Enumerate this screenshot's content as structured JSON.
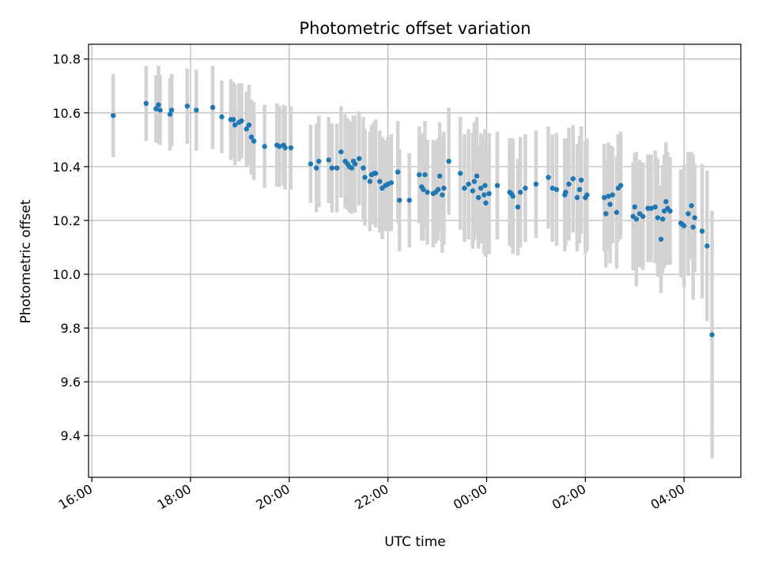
{
  "chart_data": {
    "type": "scatter",
    "title": "Photometric offset variation",
    "xlabel": "UTC time",
    "ylabel": "Photometric offset",
    "grid": true,
    "legend": "none",
    "x_ticks": [
      "16:00",
      "18:00",
      "20:00",
      "22:00",
      "00:00",
      "02:00",
      "04:00"
    ],
    "y_ticks": [
      "9.4",
      "9.6",
      "9.8",
      "10.0",
      "10.2",
      "10.4",
      "10.6",
      "10.8"
    ],
    "xlim": [
      "15:56",
      "05:09"
    ],
    "ylim": [
      9.245,
      10.855
    ],
    "colors": {
      "marker": "#1f77b4",
      "errorbar": "#d3d3d3",
      "grid": "#b0b0b0"
    },
    "series": [
      {
        "x": [
          "16:26",
          "17:06",
          "17:18",
          "17:21",
          "17:23",
          "17:35",
          "17:37",
          "17:56",
          "18:07",
          "18:27",
          "18:38",
          "18:49",
          "18:52",
          "18:54",
          "18:59",
          "19:02",
          "19:08",
          "19:11",
          "19:14",
          "19:17",
          "19:30",
          "19:45",
          "19:48",
          "19:53",
          "19:55",
          "20:02",
          "20:26",
          "20:33",
          "20:36",
          "20:48",
          "20:52",
          "20:58",
          "21:03",
          "21:08",
          "21:11",
          "21:13",
          "21:16",
          "21:18",
          "21:20",
          "21:25",
          "21:30",
          "21:32",
          "21:38",
          "21:40",
          "21:43",
          "21:45",
          "21:50",
          "21:53",
          "21:57",
          "22:00",
          "22:04",
          "22:12",
          "22:14",
          "22:26",
          "22:38",
          "22:41",
          "22:43",
          "22:45",
          "22:48",
          "22:55",
          "22:58",
          "23:01",
          "23:03",
          "23:06",
          "23:08",
          "23:14",
          "23:28",
          "23:33",
          "23:38",
          "23:43",
          "23:45",
          "23:48",
          "23:50",
          "23:53",
          "23:58",
          "23:59",
          "23:57",
          "00:03",
          "00:13",
          "00:28",
          "00:30",
          "00:32",
          "00:38",
          "00:41",
          "00:47",
          "01:00",
          "01:15",
          "01:20",
          "01:25",
          "01:35",
          "01:36",
          "01:40",
          "01:45",
          "01:50",
          "01:53",
          "01:55",
          "02:00",
          "02:02",
          "02:23",
          "02:25",
          "02:28",
          "02:30",
          "02:33",
          "02:38",
          "02:40",
          "02:43",
          "02:58",
          "03:00",
          "03:02",
          "03:06",
          "03:10",
          "03:16",
          "03:20",
          "03:25",
          "03:28",
          "03:32",
          "03:34",
          "03:36",
          "03:38",
          "03:40",
          "03:43",
          "03:56",
          "03:58",
          "04:00",
          "04:05",
          "04:09",
          "04:11",
          "04:13",
          "04:22",
          "04:28",
          "04:34"
        ],
        "y": [
          10.59,
          10.635,
          10.615,
          10.63,
          10.61,
          10.595,
          10.61,
          10.625,
          10.61,
          10.62,
          10.585,
          10.575,
          10.575,
          10.555,
          10.565,
          10.57,
          10.54,
          10.555,
          10.51,
          10.495,
          10.475,
          10.48,
          10.475,
          10.48,
          10.47,
          10.47,
          10.41,
          10.395,
          10.42,
          10.425,
          10.395,
          10.395,
          10.455,
          10.42,
          10.41,
          10.4,
          10.395,
          10.42,
          10.41,
          10.43,
          10.395,
          10.36,
          10.345,
          10.37,
          10.375,
          10.375,
          10.345,
          10.32,
          10.33,
          10.335,
          10.34,
          10.38,
          10.275,
          10.275,
          10.37,
          10.325,
          10.315,
          10.37,
          10.305,
          10.3,
          10.305,
          10.315,
          10.365,
          10.295,
          10.32,
          10.42,
          10.375,
          10.32,
          10.335,
          10.31,
          10.345,
          10.365,
          10.285,
          10.32,
          10.33,
          10.265,
          10.295,
          10.3,
          10.33,
          10.305,
          10.3,
          10.29,
          10.25,
          10.305,
          10.32,
          10.335,
          10.36,
          10.32,
          10.315,
          10.295,
          10.305,
          10.335,
          10.355,
          10.285,
          10.315,
          10.35,
          10.285,
          10.295,
          10.285,
          10.225,
          10.29,
          10.26,
          10.295,
          10.23,
          10.32,
          10.33,
          10.215,
          10.25,
          10.205,
          10.225,
          10.215,
          10.245,
          10.245,
          10.25,
          10.21,
          10.13,
          10.205,
          10.235,
          10.27,
          10.245,
          10.235,
          10.19,
          10.185,
          10.18,
          10.225,
          10.255,
          10.175,
          10.21,
          10.16,
          10.105,
          9.775
        ],
        "err": [
          0.155,
          0.14,
          0.125,
          0.145,
          0.13,
          0.135,
          0.135,
          0.14,
          0.15,
          0.155,
          0.135,
          0.15,
          0.14,
          0.15,
          0.145,
          0.14,
          0.14,
          0.15,
          0.14,
          0.145,
          0.155,
          0.155,
          0.15,
          0.15,
          0.155,
          0.155,
          0.145,
          0.165,
          0.17,
          0.16,
          0.165,
          0.165,
          0.17,
          0.175,
          0.17,
          0.17,
          0.17,
          0.17,
          0.18,
          0.175,
          0.19,
          0.18,
          0.185,
          0.185,
          0.19,
          0.2,
          0.19,
          0.19,
          0.17,
          0.175,
          0.18,
          0.19,
          0.19,
          0.175,
          0.18,
          0.2,
          0.19,
          0.2,
          0.195,
          0.2,
          0.19,
          0.19,
          0.2,
          0.215,
          0.21,
          0.2,
          0.21,
          0.2,
          0.205,
          0.215,
          0.22,
          0.22,
          0.19,
          0.205,
          0.21,
          0.2,
          0.22,
          0.225,
          0.2,
          0.2,
          0.2,
          0.215,
          0.18,
          0.205,
          0.2,
          0.2,
          0.19,
          0.2,
          0.21,
          0.21,
          0.2,
          0.21,
          0.2,
          0.2,
          0.2,
          0.2,
          0.21,
          0.21,
          0.2,
          0.2,
          0.2,
          0.22,
          0.18,
          0.21,
          0.2,
          0.2,
          0.2,
          0.2,
          0.25,
          0.2,
          0.2,
          0.2,
          0.2,
          0.21,
          0.22,
          0.2,
          0.2,
          0.21,
          0.22,
          0.21,
          0.2,
          0.2,
          0.2,
          0.23,
          0.23,
          0.2,
          0.27,
          0.2,
          0.25,
          0.28,
          0.46
        ]
      }
    ]
  }
}
